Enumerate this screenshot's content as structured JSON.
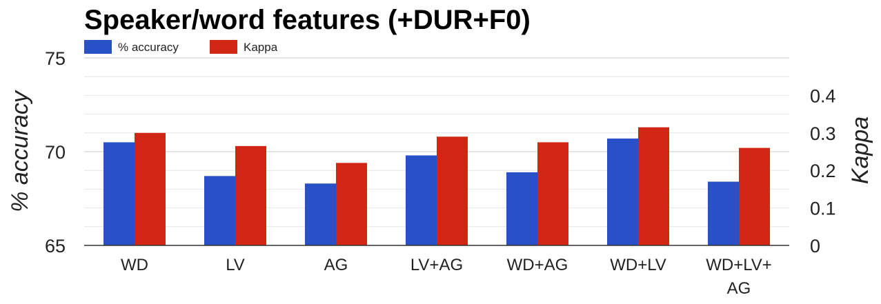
{
  "chart_data": {
    "type": "bar",
    "title": "Speaker/word features (+DUR+F0)",
    "categories": [
      "WD",
      "LV",
      "AG",
      "LV+AG",
      "WD+AG",
      "WD+LV",
      "WD+LV+AG"
    ],
    "category_lines": [
      [
        "WD"
      ],
      [
        "LV"
      ],
      [
        "AG"
      ],
      [
        "LV+AG"
      ],
      [
        "WD+AG"
      ],
      [
        "WD+LV"
      ],
      [
        "WD+LV+",
        "AG"
      ]
    ],
    "series": [
      {
        "name": "% accuracy",
        "axis": "left",
        "color": "#2851c8",
        "values": [
          70.5,
          68.7,
          68.3,
          69.8,
          68.9,
          70.7,
          68.4
        ]
      },
      {
        "name": "Kappa",
        "axis": "right",
        "color": "#d12614",
        "values": [
          0.3,
          0.265,
          0.22,
          0.29,
          0.275,
          0.315,
          0.26
        ]
      }
    ],
    "ylabel": "% accuracy",
    "ylim": [
      65,
      75
    ],
    "yticks": [
      "65",
      "70",
      "75"
    ],
    "y2label": "Kappa",
    "y2lim": [
      0,
      0.5
    ],
    "y2ticks": [
      "0",
      "0.1",
      "0.2",
      "0.3",
      "0.4"
    ],
    "legend_position": "top-left",
    "grid": true
  }
}
